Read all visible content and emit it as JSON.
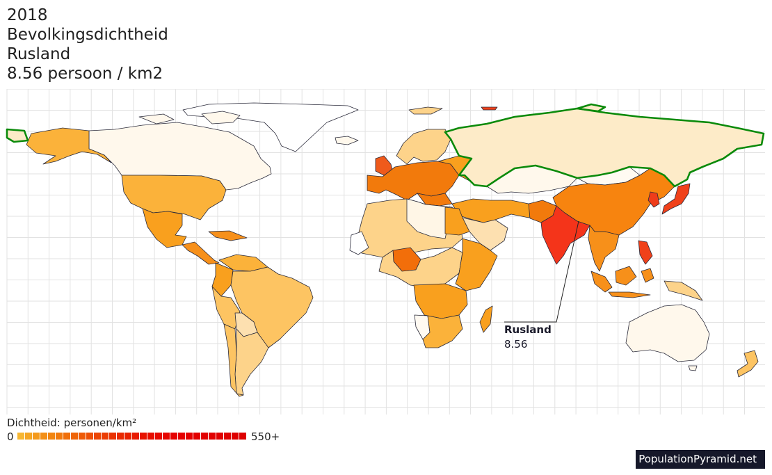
{
  "title": {
    "year": "2018",
    "metric": "Bevolkingsdichtheid",
    "country": "Rusland",
    "value_line": "8.56 persoon / km2"
  },
  "callout": {
    "country": "Rusland",
    "value": "8.56"
  },
  "legend": {
    "title": "Dichtheid: personen/km²",
    "min_label": "0",
    "max_label": "550+",
    "colors": [
      "#f7b733",
      "#f5a624",
      "#f49a1c",
      "#f38f16",
      "#f28510",
      "#f17a0d",
      "#f06f0a",
      "#ef6508",
      "#ee5a06",
      "#ed5005",
      "#ec4604",
      "#eb3c03",
      "#ea3202",
      "#e92a02",
      "#e82201",
      "#e81b01",
      "#e71401",
      "#e70e00",
      "#e60900",
      "#e60500",
      "#e50200",
      "#e50000",
      "#e40000",
      "#e30000",
      "#e20000",
      "#e10000",
      "#e00000",
      "#df0000",
      "#de0000",
      "#dd0000"
    ]
  },
  "map": {
    "highlight_color": "#0a8a0a",
    "regions": [
      {
        "name": "Rusland",
        "fill": "#fdebc8",
        "highlight": true
      },
      {
        "name": "Canada",
        "fill": "#fff8ec"
      },
      {
        "name": "Greenland",
        "fill": "#ffffff"
      },
      {
        "name": "Alaska",
        "fill": "#fbb23a"
      },
      {
        "name": "United States",
        "fill": "#fbb23a"
      },
      {
        "name": "Mexico",
        "fill": "#f9a01e"
      },
      {
        "name": "Central America",
        "fill": "#f7901a"
      },
      {
        "name": "Colombia",
        "fill": "#f9a01e"
      },
      {
        "name": "Venezuela",
        "fill": "#fbb23a"
      },
      {
        "name": "Brazil",
        "fill": "#fdc462"
      },
      {
        "name": "Peru",
        "fill": "#fdc462"
      },
      {
        "name": "Bolivia",
        "fill": "#fde0b0"
      },
      {
        "name": "Argentina",
        "fill": "#fdd38a"
      },
      {
        "name": "Chile",
        "fill": "#fdc462"
      },
      {
        "name": "Western Europe",
        "fill": "#f27a0c"
      },
      {
        "name": "United Kingdom",
        "fill": "#ef5a1b"
      },
      {
        "name": "Scandinavia",
        "fill": "#fdd38a"
      },
      {
        "name": "Eastern Europe",
        "fill": "#f9a01e"
      },
      {
        "name": "Kazakhstan",
        "fill": "#fff8ec"
      },
      {
        "name": "Middle East",
        "fill": "#f9a01e"
      },
      {
        "name": "Saudi Arabia",
        "fill": "#fde0b0"
      },
      {
        "name": "Egypt",
        "fill": "#f9a01e"
      },
      {
        "name": "Libya",
        "fill": "#fff6e6"
      },
      {
        "name": "Algeria",
        "fill": "#fdd38a"
      },
      {
        "name": "Western Sahara",
        "fill": "#ffffff"
      },
      {
        "name": "Nigeria",
        "fill": "#f26e0a"
      },
      {
        "name": "Central Africa",
        "fill": "#fdd38a"
      },
      {
        "name": "East Africa",
        "fill": "#f9a01e"
      },
      {
        "name": "Southern Africa",
        "fill": "#fbb23a"
      },
      {
        "name": "Namibia",
        "fill": "#fffaf2"
      },
      {
        "name": "Madagascar",
        "fill": "#f9a01e"
      },
      {
        "name": "India",
        "fill": "#f4341a"
      },
      {
        "name": "Pakistan",
        "fill": "#f27a0c"
      },
      {
        "name": "China",
        "fill": "#f7840f"
      },
      {
        "name": "Mongolia",
        "fill": "#fffaf2"
      },
      {
        "name": "Japan",
        "fill": "#f0411a"
      },
      {
        "name": "Korea",
        "fill": "#ef3c1a"
      },
      {
        "name": "Southeast Asia",
        "fill": "#f7901a"
      },
      {
        "name": "Indonesia",
        "fill": "#f7901a"
      },
      {
        "name": "Philippines",
        "fill": "#f0411a"
      },
      {
        "name": "Papua New Guinea",
        "fill": "#fdd38a"
      },
      {
        "name": "Australia",
        "fill": "#fff8ec"
      },
      {
        "name": "New Zealand",
        "fill": "#fdc462"
      }
    ]
  },
  "brand": "PopulationPyramid.net"
}
